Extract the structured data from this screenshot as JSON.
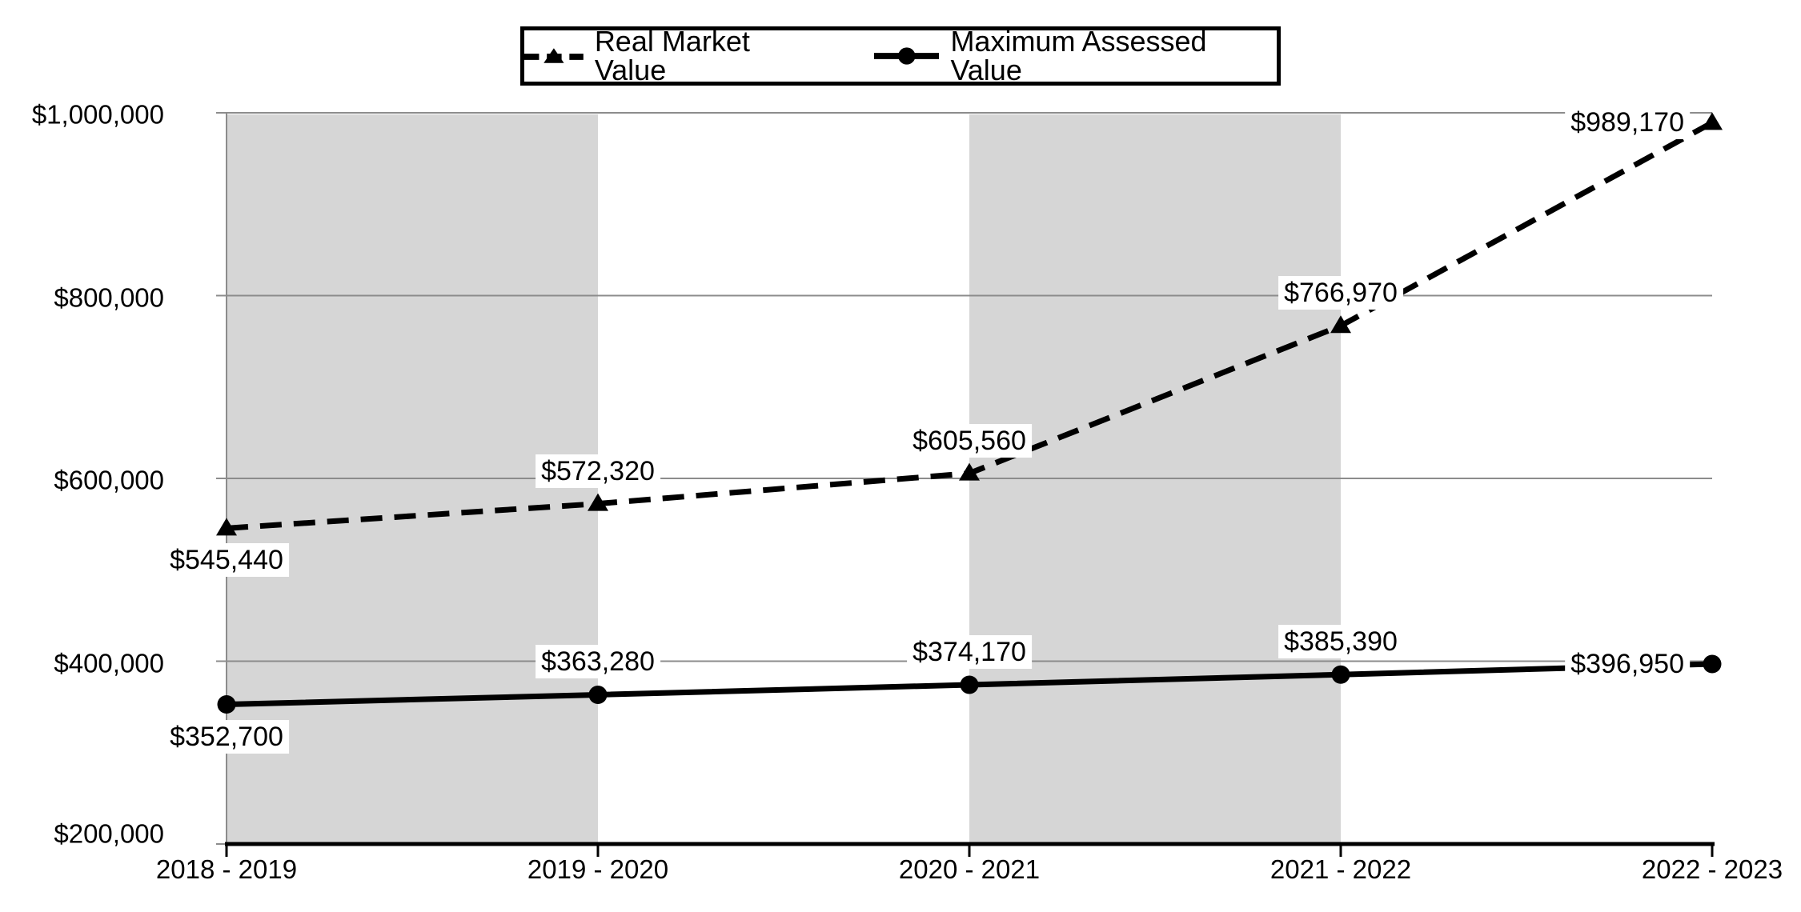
{
  "chart_data": {
    "type": "line",
    "title": "",
    "xlabel": "",
    "ylabel": "",
    "categories": [
      "2018 - 2019",
      "2019 - 2020",
      "2020 - 2021",
      "2021 - 2022",
      "2022 - 2023"
    ],
    "series": [
      {
        "name": "Real Market Value",
        "style": "dashed",
        "marker": "triangle",
        "color": "#000000",
        "values": [
          545440,
          572320,
          605560,
          766970,
          989170
        ],
        "labels": [
          "$545,440",
          "$572,320",
          "$605,560",
          "$766,970",
          "$989,170"
        ]
      },
      {
        "name": "Maximum Assessed Value",
        "style": "solid",
        "marker": "circle",
        "color": "#000000",
        "values": [
          352700,
          363280,
          374170,
          385390,
          396950
        ],
        "labels": [
          "$352,700",
          "$363,280",
          "$374,170",
          "$385,390",
          "$396,950"
        ]
      }
    ],
    "y_ticks": [
      {
        "value": 1000000,
        "label": "$1,000,000"
      },
      {
        "value": 800000,
        "label": "$800,000"
      },
      {
        "value": 600000,
        "label": "$600,000"
      },
      {
        "value": 400000,
        "label": "$400,000"
      },
      {
        "value": 200000,
        "label": "$200,000"
      }
    ],
    "ylim": [
      200000,
      1000000
    ],
    "grid": true,
    "legend_position": "top",
    "plot_bands": "alternating gray column bands behind data"
  },
  "colors": {
    "background": "#ffffff",
    "band": "#d6d6d6",
    "gridline": "#8c8c8c",
    "axis": "#000000",
    "series": "#000000",
    "label_bg": "#ffffff",
    "text": "#000000"
  }
}
